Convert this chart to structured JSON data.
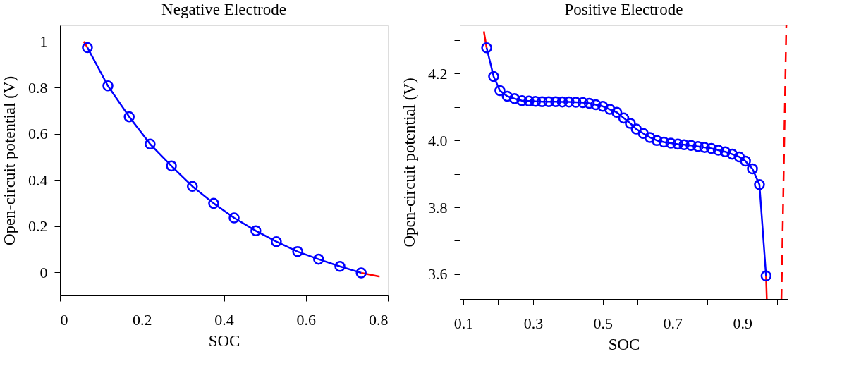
{
  "chart_data": [
    {
      "type": "line",
      "title": "Negative Electrode",
      "xlabel": "SOC",
      "ylabel": "Open-circuit potential (V)",
      "xlim": [
        0,
        0.8
      ],
      "ylim": [
        -0.1,
        1.07
      ],
      "xticks": [
        0,
        0.2,
        0.4,
        0.6,
        0.8
      ],
      "yticks": [
        0,
        0.2,
        0.4,
        0.6,
        0.8,
        1
      ],
      "grid": false,
      "series": [
        {
          "color": "#ff0000",
          "marker": "none",
          "line_style": "solid",
          "x": [
            0.058,
            0.067,
            0.117,
            0.169,
            0.22,
            0.272,
            0.323,
            0.375,
            0.425,
            0.478,
            0.528,
            0.58,
            0.631,
            0.683,
            0.735,
            0.78
          ],
          "values": [
            1.0,
            0.974,
            null,
            null,
            null,
            null,
            null,
            null,
            null,
            null,
            null,
            null,
            null,
            null,
            -0.002,
            -0.018
          ]
        },
        {
          "color": "#0000ff",
          "marker": "circle",
          "line_style": "solid",
          "x": [
            0.067,
            0.117,
            0.169,
            0.22,
            0.272,
            0.323,
            0.375,
            0.425,
            0.478,
            0.528,
            0.58,
            0.631,
            0.683,
            0.735
          ],
          "values": [
            0.974,
            0.808,
            0.674,
            0.556,
            0.461,
            0.373,
            0.299,
            0.236,
            0.18,
            0.133,
            0.09,
            0.057,
            0.026,
            -0.002
          ]
        }
      ]
    },
    {
      "type": "line",
      "title": "Positive Electrode",
      "xlabel": "SOC",
      "ylabel": "Open-circuit potential (V)",
      "xlim": [
        0.09,
        1.03
      ],
      "ylim": [
        3.526,
        4.344
      ],
      "xticks": [
        0.1,
        {
          "value": 0.2,
          "label": null
        },
        0.3,
        {
          "value": 0.4,
          "label": null
        },
        0.5,
        {
          "value": 0.6,
          "label": null
        },
        0.7,
        {
          "value": 0.8,
          "label": null
        },
        0.9,
        {
          "value": 1.0,
          "label": null
        }
      ],
      "yticks": [
        3.6,
        {
          "value": 3.7,
          "label": null
        },
        3.8,
        {
          "value": 3.9,
          "label": null
        },
        {
          "value": 4.0,
          "label": "4.0"
        },
        {
          "value": 4.1,
          "label": null
        },
        4.2,
        {
          "value": 4.3,
          "label": null
        }
      ],
      "grid": false,
      "series": [
        {
          "color": "#ff0000",
          "marker": "none",
          "line_style": "solid",
          "x": [
            0.159,
            0.167,
            0.187,
            0.205,
            0.226,
            0.247,
            0.268,
            0.288,
            0.307,
            0.326,
            0.345,
            0.365,
            0.384,
            0.403,
            0.423,
            0.443,
            0.461,
            0.48,
            0.5,
            0.52,
            0.54,
            0.56,
            0.579,
            0.596,
            0.616,
            0.635,
            0.655,
            0.675,
            0.695,
            0.715,
            0.733,
            0.753,
            0.773,
            0.792,
            0.811,
            0.831,
            0.851,
            0.871,
            0.891,
            0.909,
            0.929,
            0.949,
            0.968,
            0.97
          ],
          "values": [
            4.326,
            4.277,
            null,
            null,
            null,
            null,
            null,
            null,
            null,
            null,
            null,
            null,
            null,
            null,
            null,
            null,
            null,
            null,
            null,
            null,
            null,
            null,
            null,
            null,
            null,
            null,
            null,
            null,
            null,
            null,
            null,
            null,
            null,
            null,
            null,
            null,
            null,
            null,
            null,
            null,
            null,
            null,
            3.595,
            3.526
          ]
        },
        {
          "color": "#ff0000",
          "marker": "none",
          "line_style": "dashed",
          "x": [
            1.012,
            1.026
          ],
          "values": [
            3.526,
            4.344
          ]
        },
        {
          "color": "#0000ff",
          "marker": "circle",
          "line_style": "solid",
          "x": [
            0.167,
            0.187,
            0.205,
            0.226,
            0.247,
            0.268,
            0.288,
            0.307,
            0.326,
            0.345,
            0.365,
            0.384,
            0.403,
            0.423,
            0.443,
            0.461,
            0.48,
            0.5,
            0.52,
            0.54,
            0.56,
            0.579,
            0.596,
            0.616,
            0.635,
            0.655,
            0.675,
            0.695,
            0.715,
            0.733,
            0.753,
            0.773,
            0.792,
            0.811,
            0.831,
            0.851,
            0.871,
            0.891,
            0.909,
            0.929,
            0.949,
            0.968
          ],
          "values": [
            4.277,
            4.191,
            4.149,
            4.132,
            4.125,
            4.119,
            4.118,
            4.117,
            4.116,
            4.116,
            4.116,
            4.115,
            4.115,
            4.114,
            4.113,
            4.111,
            4.107,
            4.102,
            4.093,
            4.084,
            4.067,
            4.051,
            4.034,
            4.021,
            4.009,
            4.0,
            3.995,
            3.992,
            3.989,
            3.987,
            3.985,
            3.982,
            3.979,
            3.976,
            3.971,
            3.966,
            3.959,
            3.951,
            3.938,
            3.915,
            3.868,
            3.595
          ]
        }
      ]
    }
  ]
}
